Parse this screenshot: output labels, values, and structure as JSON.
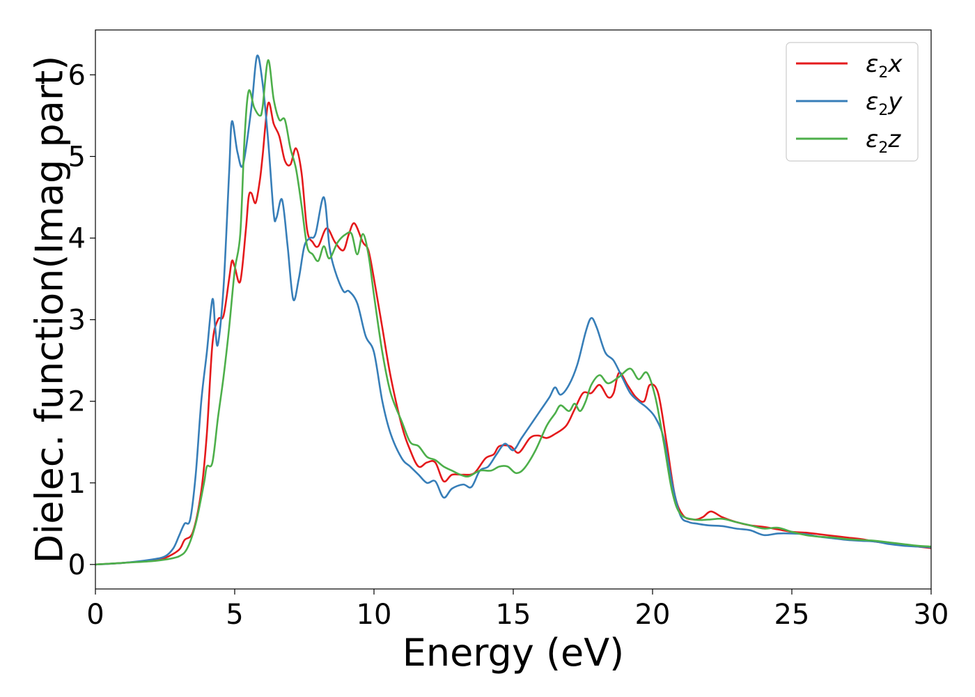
{
  "chart_data": {
    "type": "line",
    "title": "",
    "xlabel": "Energy (eV)",
    "ylabel": "Dielec. function(Imag part)",
    "xlim": [
      0,
      30
    ],
    "ylim": [
      -0.3,
      6.55
    ],
    "x_ticks": [
      0,
      5,
      10,
      15,
      20,
      25,
      30
    ],
    "y_ticks": [
      0,
      1,
      2,
      3,
      4,
      5,
      6
    ],
    "x_tick_labels": [
      "0",
      "5",
      "10",
      "15",
      "20",
      "25",
      "30"
    ],
    "y_tick_labels": [
      "0",
      "1",
      "2",
      "3",
      "4",
      "5",
      "6"
    ],
    "grid": false,
    "legend_position": "top-right",
    "series": [
      {
        "name": "ε2x",
        "legend": {
          "base": "ε",
          "sub": "2",
          "var": "x"
        },
        "color": "#e41a1c",
        "points": [
          [
            0,
            0
          ],
          [
            1,
            0.02
          ],
          [
            2,
            0.05
          ],
          [
            2.5,
            0.08
          ],
          [
            3,
            0.18
          ],
          [
            3.2,
            0.3
          ],
          [
            3.5,
            0.4
          ],
          [
            3.8,
            0.9
          ],
          [
            4.0,
            1.6
          ],
          [
            4.2,
            2.7
          ],
          [
            4.4,
            3.0
          ],
          [
            4.6,
            3.05
          ],
          [
            4.8,
            3.5
          ],
          [
            4.9,
            3.72
          ],
          [
            5.0,
            3.65
          ],
          [
            5.2,
            3.47
          ],
          [
            5.4,
            4.1
          ],
          [
            5.5,
            4.5
          ],
          [
            5.6,
            4.55
          ],
          [
            5.75,
            4.43
          ],
          [
            5.9,
            4.7
          ],
          [
            6.0,
            5.0
          ],
          [
            6.2,
            5.65
          ],
          [
            6.4,
            5.4
          ],
          [
            6.6,
            5.25
          ],
          [
            6.8,
            4.95
          ],
          [
            7.0,
            4.9
          ],
          [
            7.2,
            5.1
          ],
          [
            7.4,
            4.8
          ],
          [
            7.6,
            4.1
          ],
          [
            7.8,
            3.95
          ],
          [
            8.0,
            3.9
          ],
          [
            8.3,
            4.12
          ],
          [
            8.6,
            3.95
          ],
          [
            8.9,
            3.85
          ],
          [
            9.1,
            4.05
          ],
          [
            9.3,
            4.18
          ],
          [
            9.6,
            3.95
          ],
          [
            9.8,
            3.85
          ],
          [
            10.0,
            3.5
          ],
          [
            10.3,
            2.9
          ],
          [
            10.6,
            2.3
          ],
          [
            11.0,
            1.7
          ],
          [
            11.3,
            1.4
          ],
          [
            11.6,
            1.2
          ],
          [
            11.9,
            1.25
          ],
          [
            12.2,
            1.25
          ],
          [
            12.5,
            1.02
          ],
          [
            12.8,
            1.1
          ],
          [
            13.2,
            1.1
          ],
          [
            13.6,
            1.12
          ],
          [
            14.0,
            1.3
          ],
          [
            14.3,
            1.35
          ],
          [
            14.5,
            1.45
          ],
          [
            14.9,
            1.45
          ],
          [
            15.2,
            1.37
          ],
          [
            15.6,
            1.55
          ],
          [
            15.9,
            1.58
          ],
          [
            16.2,
            1.55
          ],
          [
            16.5,
            1.6
          ],
          [
            16.9,
            1.7
          ],
          [
            17.2,
            1.9
          ],
          [
            17.5,
            2.1
          ],
          [
            17.8,
            2.1
          ],
          [
            18.1,
            2.2
          ],
          [
            18.4,
            2.05
          ],
          [
            18.6,
            2.1
          ],
          [
            18.8,
            2.35
          ],
          [
            19.1,
            2.2
          ],
          [
            19.4,
            2.05
          ],
          [
            19.7,
            2.0
          ],
          [
            19.9,
            2.2
          ],
          [
            20.2,
            2.1
          ],
          [
            20.5,
            1.5
          ],
          [
            20.8,
            0.85
          ],
          [
            21.1,
            0.6
          ],
          [
            21.5,
            0.55
          ],
          [
            21.8,
            0.58
          ],
          [
            22.1,
            0.65
          ],
          [
            22.5,
            0.58
          ],
          [
            23.0,
            0.52
          ],
          [
            23.5,
            0.48
          ],
          [
            24.0,
            0.46
          ],
          [
            24.5,
            0.43
          ],
          [
            25.0,
            0.4
          ],
          [
            25.5,
            0.39
          ],
          [
            26.0,
            0.37
          ],
          [
            26.5,
            0.35
          ],
          [
            27.0,
            0.33
          ],
          [
            27.5,
            0.31
          ],
          [
            28.0,
            0.28
          ],
          [
            28.5,
            0.26
          ],
          [
            29.0,
            0.24
          ],
          [
            29.5,
            0.22
          ],
          [
            30.0,
            0.2
          ]
        ]
      },
      {
        "name": "ε2y",
        "legend": {
          "base": "ε",
          "sub": "2",
          "var": "y"
        },
        "color": "#377eb8",
        "points": [
          [
            0,
            0
          ],
          [
            1,
            0.02
          ],
          [
            2,
            0.06
          ],
          [
            2.5,
            0.1
          ],
          [
            2.8,
            0.2
          ],
          [
            3.0,
            0.35
          ],
          [
            3.2,
            0.5
          ],
          [
            3.4,
            0.55
          ],
          [
            3.6,
            1.1
          ],
          [
            3.8,
            2.0
          ],
          [
            4.0,
            2.6
          ],
          [
            4.2,
            3.25
          ],
          [
            4.3,
            2.9
          ],
          [
            4.4,
            2.7
          ],
          [
            4.6,
            3.4
          ],
          [
            4.8,
            4.8
          ],
          [
            4.9,
            5.43
          ],
          [
            5.1,
            5.05
          ],
          [
            5.3,
            4.9
          ],
          [
            5.6,
            5.6
          ],
          [
            5.8,
            6.23
          ],
          [
            6.0,
            5.9
          ],
          [
            6.2,
            5.2
          ],
          [
            6.4,
            4.3
          ],
          [
            6.5,
            4.25
          ],
          [
            6.7,
            4.47
          ],
          [
            6.9,
            3.9
          ],
          [
            7.1,
            3.25
          ],
          [
            7.3,
            3.5
          ],
          [
            7.5,
            3.9
          ],
          [
            7.7,
            4.0
          ],
          [
            7.9,
            4.05
          ],
          [
            8.2,
            4.5
          ],
          [
            8.4,
            3.9
          ],
          [
            8.6,
            3.6
          ],
          [
            8.9,
            3.35
          ],
          [
            9.1,
            3.35
          ],
          [
            9.4,
            3.2
          ],
          [
            9.7,
            2.8
          ],
          [
            10.0,
            2.6
          ],
          [
            10.3,
            2.0
          ],
          [
            10.6,
            1.6
          ],
          [
            11.0,
            1.3
          ],
          [
            11.3,
            1.2
          ],
          [
            11.6,
            1.1
          ],
          [
            11.9,
            1.0
          ],
          [
            12.2,
            1.02
          ],
          [
            12.5,
            0.82
          ],
          [
            12.8,
            0.93
          ],
          [
            13.2,
            0.98
          ],
          [
            13.5,
            0.95
          ],
          [
            13.8,
            1.15
          ],
          [
            14.1,
            1.2
          ],
          [
            14.4,
            1.35
          ],
          [
            14.7,
            1.48
          ],
          [
            15.0,
            1.4
          ],
          [
            15.3,
            1.55
          ],
          [
            15.7,
            1.75
          ],
          [
            16.0,
            1.9
          ],
          [
            16.3,
            2.05
          ],
          [
            16.5,
            2.17
          ],
          [
            16.7,
            2.08
          ],
          [
            17.0,
            2.2
          ],
          [
            17.3,
            2.45
          ],
          [
            17.6,
            2.85
          ],
          [
            17.8,
            3.02
          ],
          [
            18.0,
            2.9
          ],
          [
            18.3,
            2.6
          ],
          [
            18.6,
            2.5
          ],
          [
            18.9,
            2.3
          ],
          [
            19.2,
            2.1
          ],
          [
            19.5,
            2.0
          ],
          [
            19.8,
            1.92
          ],
          [
            20.1,
            1.8
          ],
          [
            20.4,
            1.55
          ],
          [
            20.7,
            1.0
          ],
          [
            21.0,
            0.6
          ],
          [
            21.3,
            0.52
          ],
          [
            21.6,
            0.5
          ],
          [
            22.0,
            0.48
          ],
          [
            22.5,
            0.47
          ],
          [
            23.0,
            0.44
          ],
          [
            23.5,
            0.42
          ],
          [
            24.0,
            0.36
          ],
          [
            24.5,
            0.38
          ],
          [
            25.0,
            0.38
          ],
          [
            25.5,
            0.37
          ],
          [
            26.0,
            0.34
          ],
          [
            26.5,
            0.32
          ],
          [
            27.0,
            0.3
          ],
          [
            27.5,
            0.29
          ],
          [
            28.0,
            0.28
          ],
          [
            28.5,
            0.25
          ],
          [
            29.0,
            0.23
          ],
          [
            29.5,
            0.22
          ],
          [
            30.0,
            0.21
          ]
        ]
      },
      {
        "name": "ε2z",
        "legend": {
          "base": "ε",
          "sub": "2",
          "var": "z"
        },
        "color": "#4daf4a",
        "points": [
          [
            0,
            0
          ],
          [
            1,
            0.02
          ],
          [
            2,
            0.04
          ],
          [
            2.5,
            0.06
          ],
          [
            3.0,
            0.1
          ],
          [
            3.3,
            0.2
          ],
          [
            3.6,
            0.5
          ],
          [
            3.9,
            1.0
          ],
          [
            4.0,
            1.2
          ],
          [
            4.2,
            1.25
          ],
          [
            4.4,
            1.8
          ],
          [
            4.6,
            2.3
          ],
          [
            4.8,
            2.9
          ],
          [
            5.0,
            3.6
          ],
          [
            5.2,
            4.05
          ],
          [
            5.35,
            5.2
          ],
          [
            5.5,
            5.8
          ],
          [
            5.7,
            5.6
          ],
          [
            5.9,
            5.5
          ],
          [
            6.0,
            5.6
          ],
          [
            6.2,
            6.18
          ],
          [
            6.4,
            5.7
          ],
          [
            6.6,
            5.45
          ],
          [
            6.8,
            5.45
          ],
          [
            7.0,
            5.1
          ],
          [
            7.2,
            4.85
          ],
          [
            7.4,
            4.4
          ],
          [
            7.6,
            3.9
          ],
          [
            7.8,
            3.8
          ],
          [
            8.0,
            3.72
          ],
          [
            8.2,
            3.9
          ],
          [
            8.4,
            3.75
          ],
          [
            8.7,
            3.95
          ],
          [
            9.0,
            4.05
          ],
          [
            9.2,
            4.05
          ],
          [
            9.4,
            3.8
          ],
          [
            9.6,
            4.05
          ],
          [
            9.8,
            3.8
          ],
          [
            10.0,
            3.3
          ],
          [
            10.3,
            2.6
          ],
          [
            10.6,
            2.1
          ],
          [
            11.0,
            1.75
          ],
          [
            11.3,
            1.5
          ],
          [
            11.6,
            1.45
          ],
          [
            11.9,
            1.32
          ],
          [
            12.2,
            1.28
          ],
          [
            12.5,
            1.2
          ],
          [
            12.8,
            1.15
          ],
          [
            13.1,
            1.1
          ],
          [
            13.4,
            1.08
          ],
          [
            13.8,
            1.15
          ],
          [
            14.2,
            1.15
          ],
          [
            14.5,
            1.2
          ],
          [
            14.8,
            1.2
          ],
          [
            15.1,
            1.12
          ],
          [
            15.4,
            1.18
          ],
          [
            15.8,
            1.4
          ],
          [
            16.2,
            1.7
          ],
          [
            16.5,
            1.85
          ],
          [
            16.7,
            1.95
          ],
          [
            17.0,
            1.88
          ],
          [
            17.2,
            1.97
          ],
          [
            17.4,
            1.88
          ],
          [
            17.6,
            2.0
          ],
          [
            17.8,
            2.2
          ],
          [
            18.1,
            2.32
          ],
          [
            18.4,
            2.22
          ],
          [
            18.8,
            2.3
          ],
          [
            19.2,
            2.4
          ],
          [
            19.5,
            2.27
          ],
          [
            19.8,
            2.35
          ],
          [
            20.1,
            2.05
          ],
          [
            20.4,
            1.5
          ],
          [
            20.7,
            0.9
          ],
          [
            21.0,
            0.62
          ],
          [
            21.5,
            0.55
          ],
          [
            22.0,
            0.55
          ],
          [
            22.5,
            0.56
          ],
          [
            23.0,
            0.52
          ],
          [
            23.5,
            0.48
          ],
          [
            24.0,
            0.44
          ],
          [
            24.5,
            0.45
          ],
          [
            25.0,
            0.4
          ],
          [
            25.5,
            0.36
          ],
          [
            26.0,
            0.34
          ],
          [
            26.5,
            0.33
          ],
          [
            27.0,
            0.31
          ],
          [
            27.5,
            0.3
          ],
          [
            28.0,
            0.29
          ],
          [
            28.5,
            0.27
          ],
          [
            29.0,
            0.25
          ],
          [
            29.5,
            0.23
          ],
          [
            30.0,
            0.22
          ]
        ]
      }
    ]
  }
}
